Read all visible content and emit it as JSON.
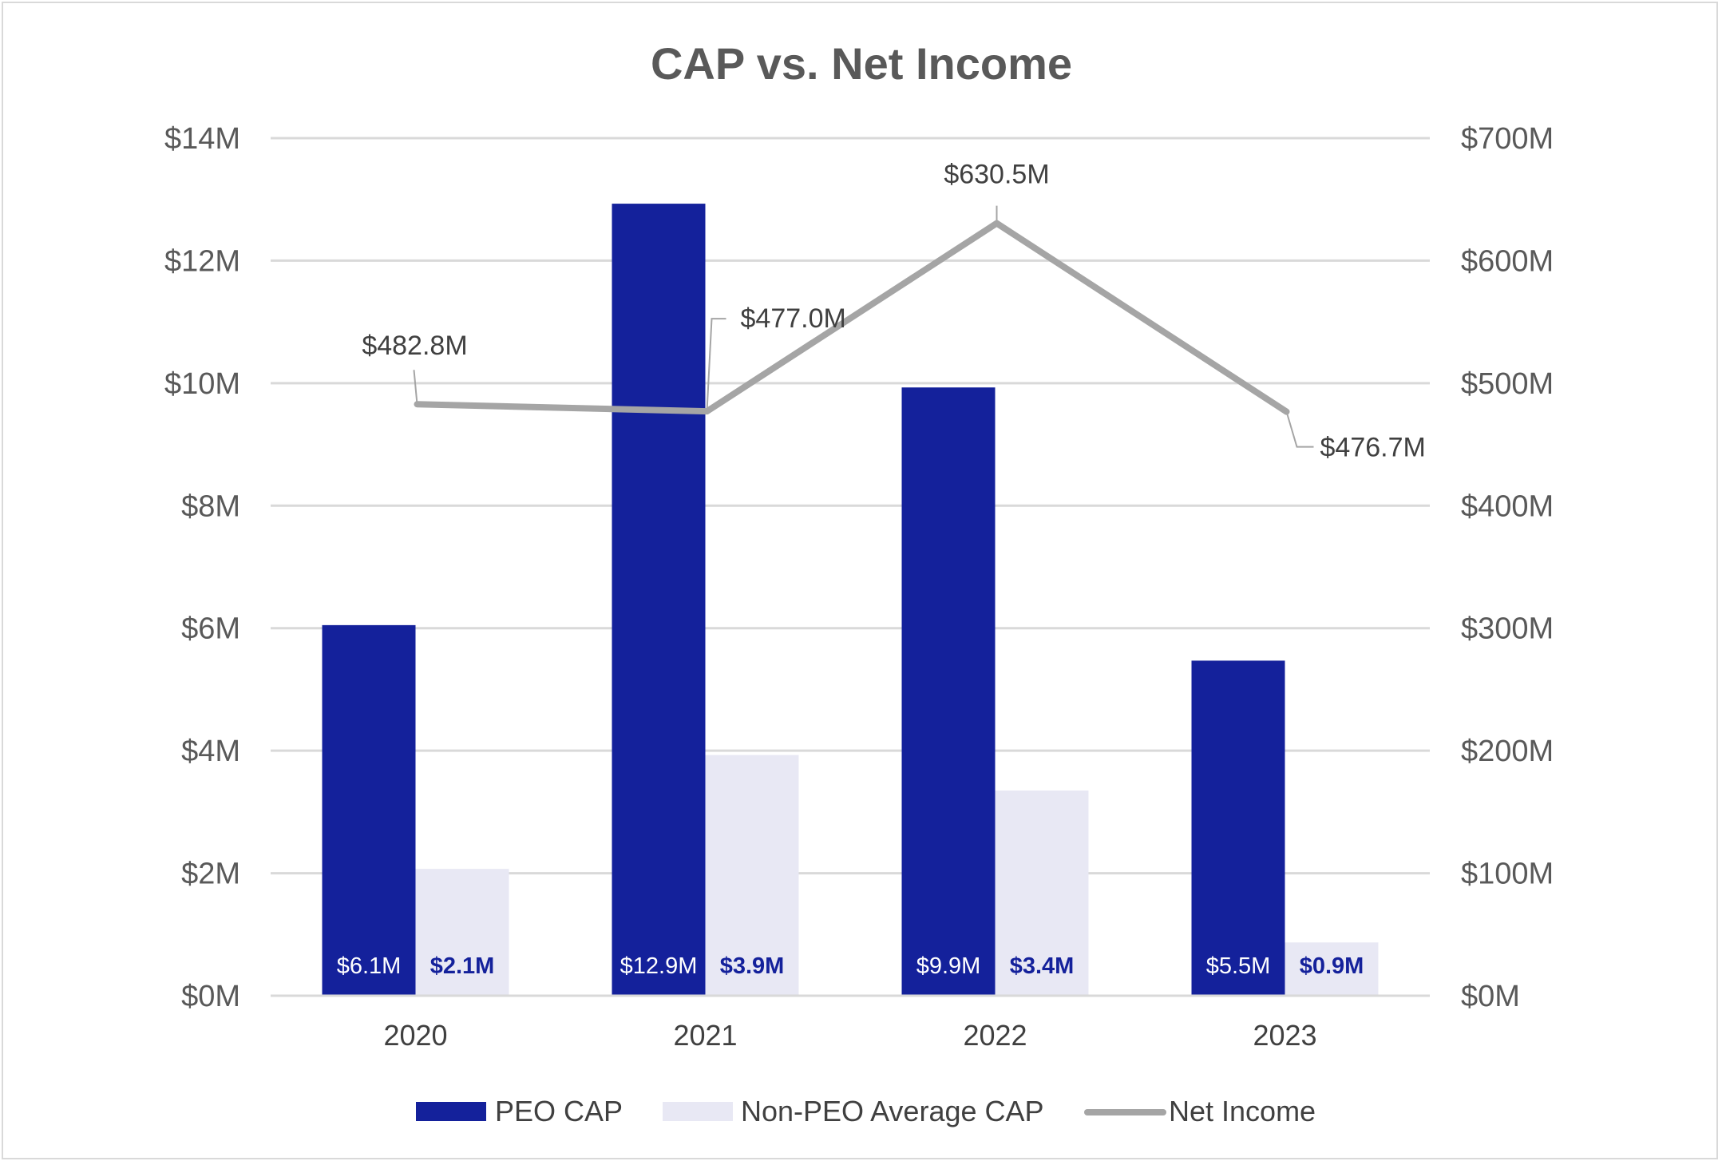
{
  "chart_data": {
    "type": "bar",
    "title": "CAP vs. Net Income",
    "categories": [
      "2020",
      "2021",
      "2022",
      "2023"
    ],
    "series": [
      {
        "name": "PEO CAP",
        "kind": "bar",
        "axis": "left",
        "color": "#14219b",
        "values": [
          6.05,
          12.93,
          9.93,
          5.47
        ],
        "labels": [
          "$6.1M",
          "$12.9M",
          "$9.9M",
          "$5.5M"
        ]
      },
      {
        "name": "Non-PEO Average CAP",
        "kind": "bar",
        "axis": "left",
        "color": "#e8e8f4",
        "values": [
          2.07,
          3.93,
          3.35,
          0.87
        ],
        "labels": [
          "$2.1M",
          "$3.9M",
          "$3.4M",
          "$0.9M"
        ]
      },
      {
        "name": "Net Income",
        "kind": "line",
        "axis": "right",
        "color": "#a5a5a5",
        "values": [
          482.8,
          477.0,
          630.5,
          476.7
        ],
        "labels": [
          "$482.8M",
          "$477.0M",
          "$630.5M",
          "$476.7M"
        ]
      }
    ],
    "y_left": {
      "ylim": [
        0,
        14
      ],
      "ticks": [
        0,
        2,
        4,
        6,
        8,
        10,
        12,
        14
      ],
      "tick_labels": [
        "$0M",
        "$2M",
        "$4M",
        "$6M",
        "$8M",
        "$10M",
        "$12M",
        "$14M"
      ]
    },
    "y_right": {
      "ylim": [
        0,
        700
      ],
      "ticks": [
        0,
        100,
        200,
        300,
        400,
        500,
        600,
        700
      ],
      "tick_labels": [
        "$0M",
        "$100M",
        "$200M",
        "$300M",
        "$400M",
        "$500M",
        "$600M",
        "$700M"
      ]
    },
    "grid": true,
    "legend_position": "bottom-center"
  }
}
